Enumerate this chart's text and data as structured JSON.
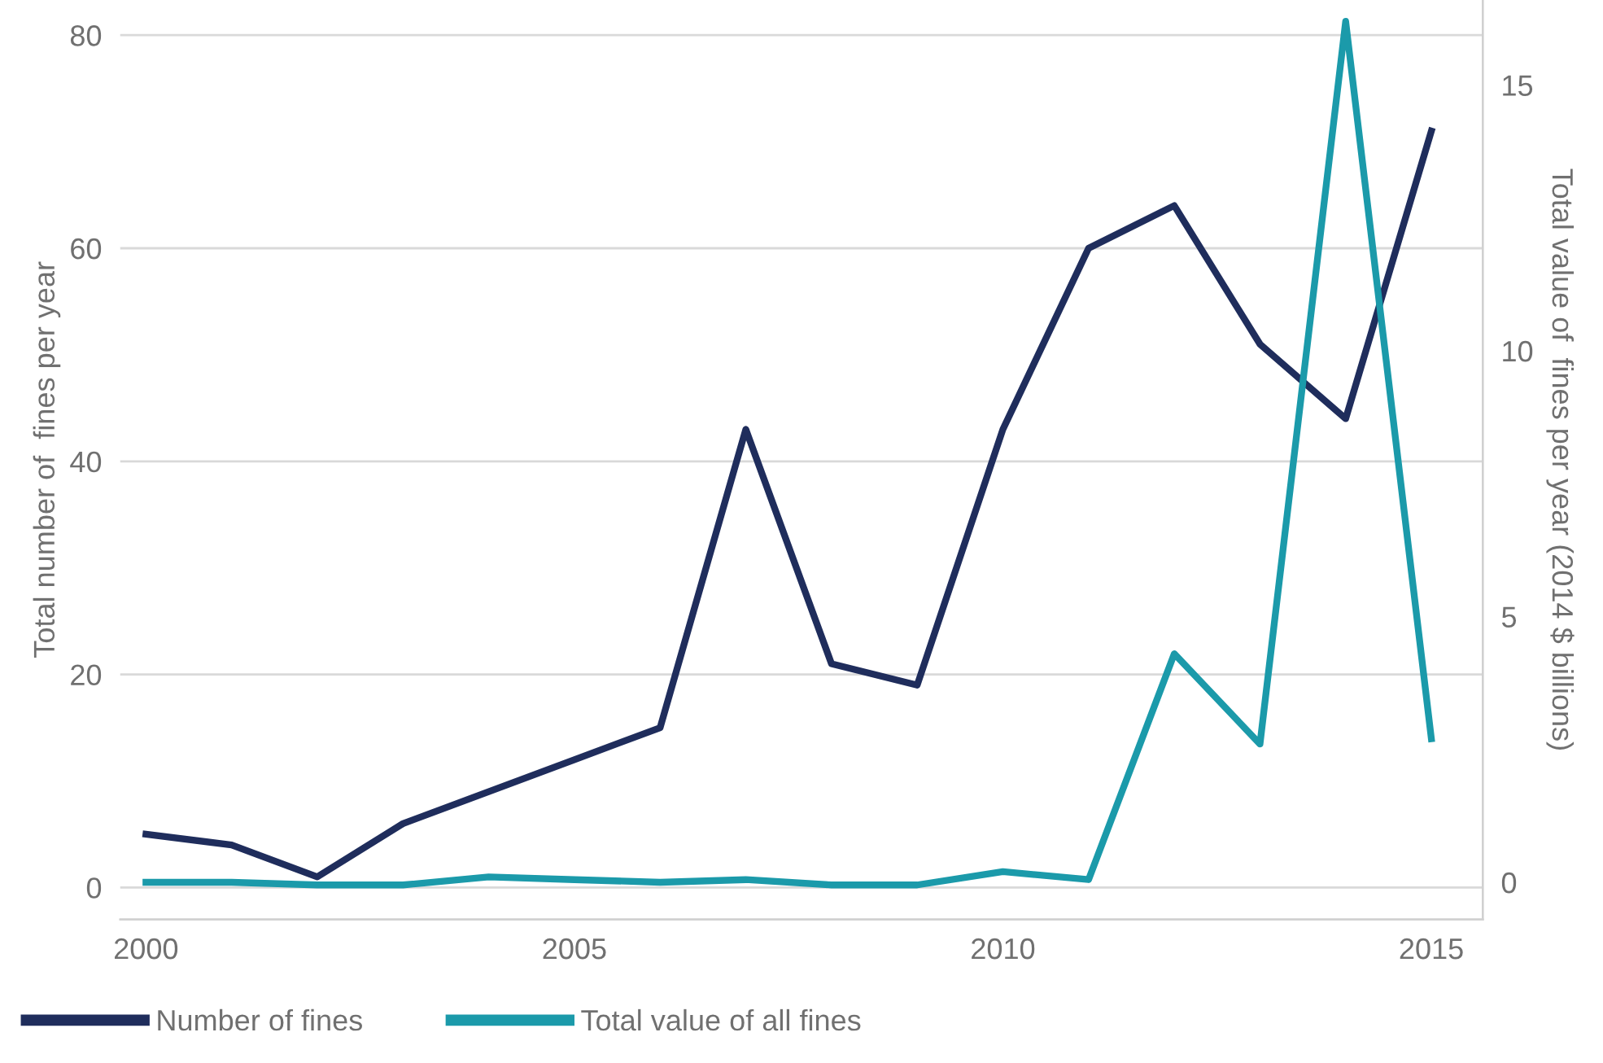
{
  "chart_data": {
    "type": "line",
    "ylabel": "Total number of  fines per year",
    "y2label": "Total value of  fines per year (2014 $ billions)",
    "x": [
      2000,
      2001,
      2002,
      2003,
      2004,
      2005,
      2006,
      2007,
      2008,
      2009,
      2010,
      2011,
      2012,
      2013,
      2014,
      2015
    ],
    "series": [
      {
        "name": "Number of fines",
        "color": "#1f2d5c",
        "values": [
          5,
          4,
          1,
          6,
          9,
          12,
          15,
          43,
          21,
          19,
          43,
          60,
          64,
          51,
          44,
          71
        ]
      },
      {
        "name": "Total value of all fines",
        "color": "#1b9aaa",
        "axis": "y2",
        "values": [
          0,
          0,
          -0.05,
          -0.05,
          0.1,
          0.05,
          0,
          0.05,
          -0.05,
          -0.05,
          0.2,
          0.05,
          4.3,
          2.6,
          16.2,
          2.7
        ]
      }
    ],
    "xlim": [
      1999.7,
      2015.6
    ],
    "xticks": [
      2000,
      2005,
      2010,
      2015
    ],
    "ylim": [
      -3,
      83.3
    ],
    "yticks": [
      0,
      20,
      40,
      60,
      80
    ],
    "y2lim": [
      -0.7,
      16.6
    ],
    "y2ticks": [
      0,
      5,
      10,
      15
    ],
    "grid": "y",
    "legend": "bottom left",
    "line_style": "solid",
    "marker": "none"
  }
}
